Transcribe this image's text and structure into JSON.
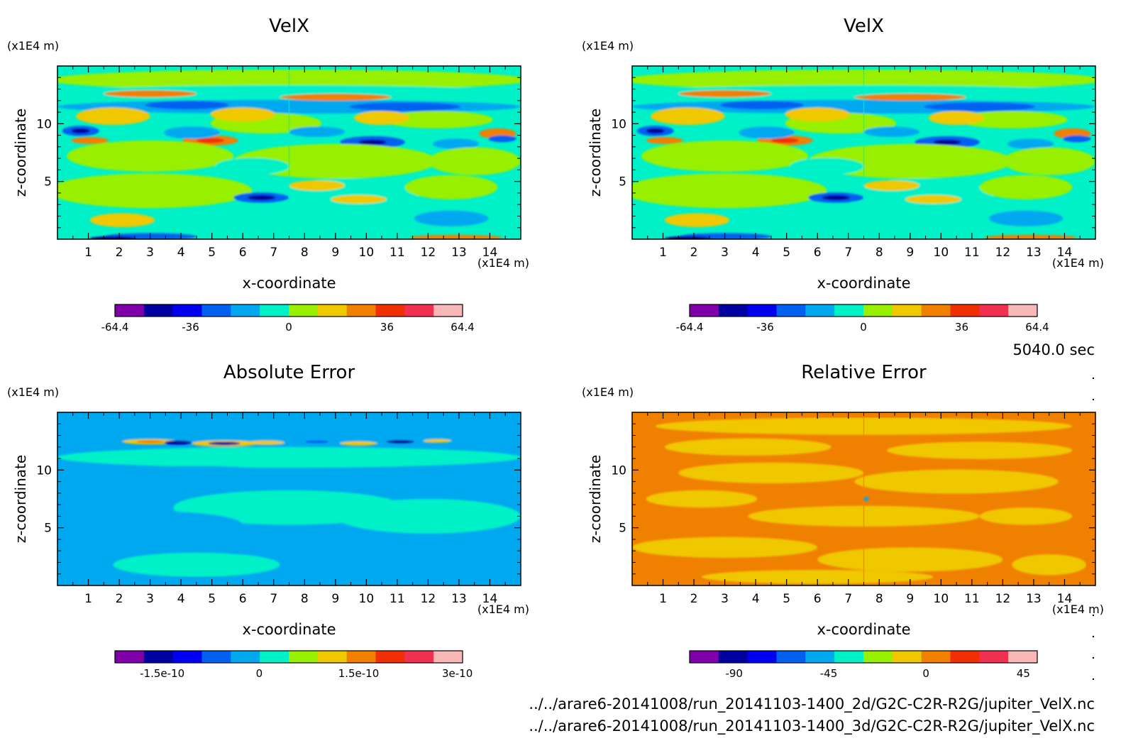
{
  "time_label": "5040.0 sec",
  "file_paths": [
    "../../arare6-20141008/run_20141103-1400_2d/G2C-C2R-R2G/jupiter_VelX.nc",
    "../../arare6-20141008/run_20141103-1400_3d/G2C-C2R-R2G/jupiter_VelX.nc"
  ],
  "chart_data": [
    {
      "type": "heatmap",
      "title": "VelX",
      "xlabel": "x-coordinate",
      "ylabel": "z-coordinate",
      "x_unit": "(x1E4 m)",
      "y_unit": "(x1E4 m)",
      "xlim": [
        0,
        15
      ],
      "ylim": [
        0,
        15
      ],
      "x_ticks": [
        "1",
        "2",
        "3",
        "4",
        "5",
        "6",
        "7",
        "8",
        "9",
        "10",
        "11",
        "12",
        "13",
        "14"
      ],
      "y_ticks": [
        "5",
        "10"
      ],
      "colorbar": {
        "colors": [
          "#7f00a8",
          "#0000a0",
          "#0000f0",
          "#0060f0",
          "#00a8f0",
          "#00f0c8",
          "#98f000",
          "#f0c800",
          "#f08000",
          "#f03000",
          "#f03050",
          "#f8b8b8"
        ],
        "tick_labels": [
          "-64.4",
          "-36",
          "0",
          "36",
          "64.4"
        ],
        "tick_positions": [
          0,
          0.2174,
          0.5,
          0.7826,
          1.0
        ]
      }
    },
    {
      "type": "heatmap",
      "title": "VelX",
      "xlabel": "x-coordinate",
      "ylabel": "z-coordinate",
      "x_unit": "(x1E4 m)",
      "y_unit": "(x1E4 m)",
      "xlim": [
        0,
        15
      ],
      "ylim": [
        0,
        15
      ],
      "x_ticks": [
        "1",
        "2",
        "3",
        "4",
        "5",
        "6",
        "7",
        "8",
        "9",
        "10",
        "11",
        "12",
        "13",
        "14"
      ],
      "y_ticks": [
        "5",
        "10"
      ],
      "colorbar": {
        "colors": [
          "#7f00a8",
          "#0000a0",
          "#0000f0",
          "#0060f0",
          "#00a8f0",
          "#00f0c8",
          "#98f000",
          "#f0c800",
          "#f08000",
          "#f03000",
          "#f03050",
          "#f8b8b8"
        ],
        "tick_labels": [
          "-64.4",
          "-36",
          "0",
          "36",
          "64.4"
        ],
        "tick_positions": [
          0,
          0.2174,
          0.5,
          0.7826,
          1.0
        ]
      }
    },
    {
      "type": "heatmap",
      "title": "Absolute Error",
      "xlabel": "x-coordinate",
      "ylabel": "z-coordinate",
      "x_unit": "(x1E4 m)",
      "y_unit": "(x1E4 m)",
      "xlim": [
        0,
        15
      ],
      "ylim": [
        0,
        15
      ],
      "x_ticks": [
        "1",
        "2",
        "3",
        "4",
        "5",
        "6",
        "7",
        "8",
        "9",
        "10",
        "11",
        "12",
        "13",
        "14"
      ],
      "y_ticks": [
        "5",
        "10"
      ],
      "colorbar": {
        "colors": [
          "#7f00a8",
          "#0000a0",
          "#0000f0",
          "#0060f0",
          "#00a8f0",
          "#00f0c8",
          "#98f000",
          "#f0c800",
          "#f08000",
          "#f03000",
          "#f03050",
          "#f8b8b8"
        ],
        "tick_labels": [
          "-1.5e-10",
          "0",
          "1.5e-10",
          "3e-10"
        ],
        "tick_positions": [
          0.136,
          0.415,
          0.701,
          0.985
        ]
      }
    },
    {
      "type": "heatmap",
      "title": "Relative Error",
      "xlabel": "x-coordinate",
      "ylabel": "z-coordinate",
      "x_unit": "(x1E4 m)",
      "y_unit": "(x1E4 m)",
      "xlim": [
        0,
        15
      ],
      "ylim": [
        0,
        15
      ],
      "x_ticks": [
        "1",
        "2",
        "3",
        "4",
        "5",
        "6",
        "7",
        "8",
        "9",
        "10",
        "11",
        "12",
        "13",
        "14"
      ],
      "y_ticks": [
        "5",
        "10"
      ],
      "colorbar": {
        "colors": [
          "#7f00a8",
          "#0000a0",
          "#0000f0",
          "#0060f0",
          "#00a8f0",
          "#00f0c8",
          "#98f000",
          "#f0c800",
          "#f08000",
          "#f03000",
          "#f03050",
          "#f8b8b8"
        ],
        "tick_labels": [
          "-90",
          "-45",
          "0",
          "45"
        ],
        "tick_positions": [
          0.128,
          0.4,
          0.68,
          0.96
        ]
      }
    }
  ]
}
